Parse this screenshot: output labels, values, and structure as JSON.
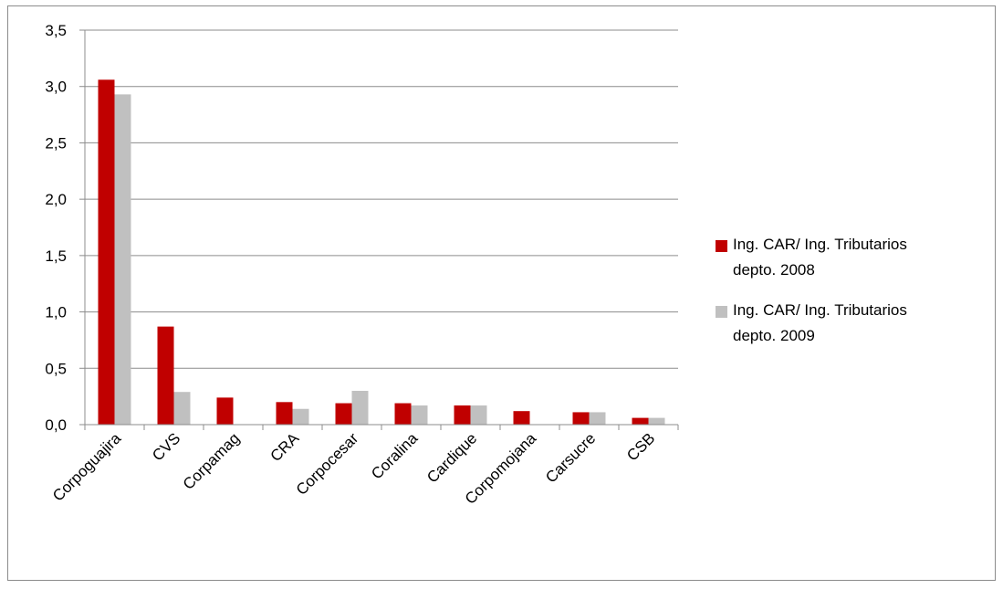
{
  "chart_data": {
    "type": "bar",
    "categories": [
      "Corpoguajira",
      "CVS",
      "Corpamag",
      "CRA",
      "Corpocesar",
      "Coralina",
      "Cardique",
      "Corpomojana",
      "Carsucre",
      "CSB"
    ],
    "series": [
      {
        "name": "Ing. CAR/ Ing. Tributarios depto. 2008",
        "name_lines": [
          "Ing. CAR/ Ing. Tributarios",
          "depto. 2008"
        ],
        "color": "#c00000",
        "values": [
          3.06,
          0.87,
          0.24,
          0.2,
          0.19,
          0.19,
          0.17,
          0.12,
          0.11,
          0.06
        ]
      },
      {
        "name": "Ing. CAR/ Ing. Tributarios depto. 2009",
        "name_lines": [
          "Ing. CAR/ Ing. Tributarios",
          "depto. 2009"
        ],
        "color": "#c0c0c0",
        "values": [
          2.93,
          0.29,
          0.0,
          0.14,
          0.3,
          0.17,
          0.17,
          0.0,
          0.11,
          0.06
        ]
      }
    ],
    "yticks": [
      "0,0",
      "0,5",
      "1,0",
      "1,5",
      "2,0",
      "2,5",
      "3,0",
      "3,5"
    ],
    "ylim": [
      0,
      3.5
    ],
    "grid": true,
    "legend_position": "right"
  }
}
